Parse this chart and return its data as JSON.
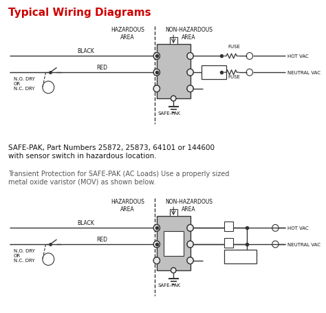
{
  "title": "Typical Wiring Diagrams",
  "title_color": "#cc0000",
  "title_fontsize": 11,
  "bg_color": "#ffffff",
  "line_color": "#333333",
  "box_color": "#c0c0c0",
  "text_color": "#111111",
  "text1": "SAFE-PAK, Part Numbers 25872, 25873, 64101 or 144600\nwith sensor switch in hazardous location.",
  "text2": "Transient Protection for SAFE-PAK (AC Loads) Use a properly sized\nmetal oxide varistor (MOV) as shown below."
}
